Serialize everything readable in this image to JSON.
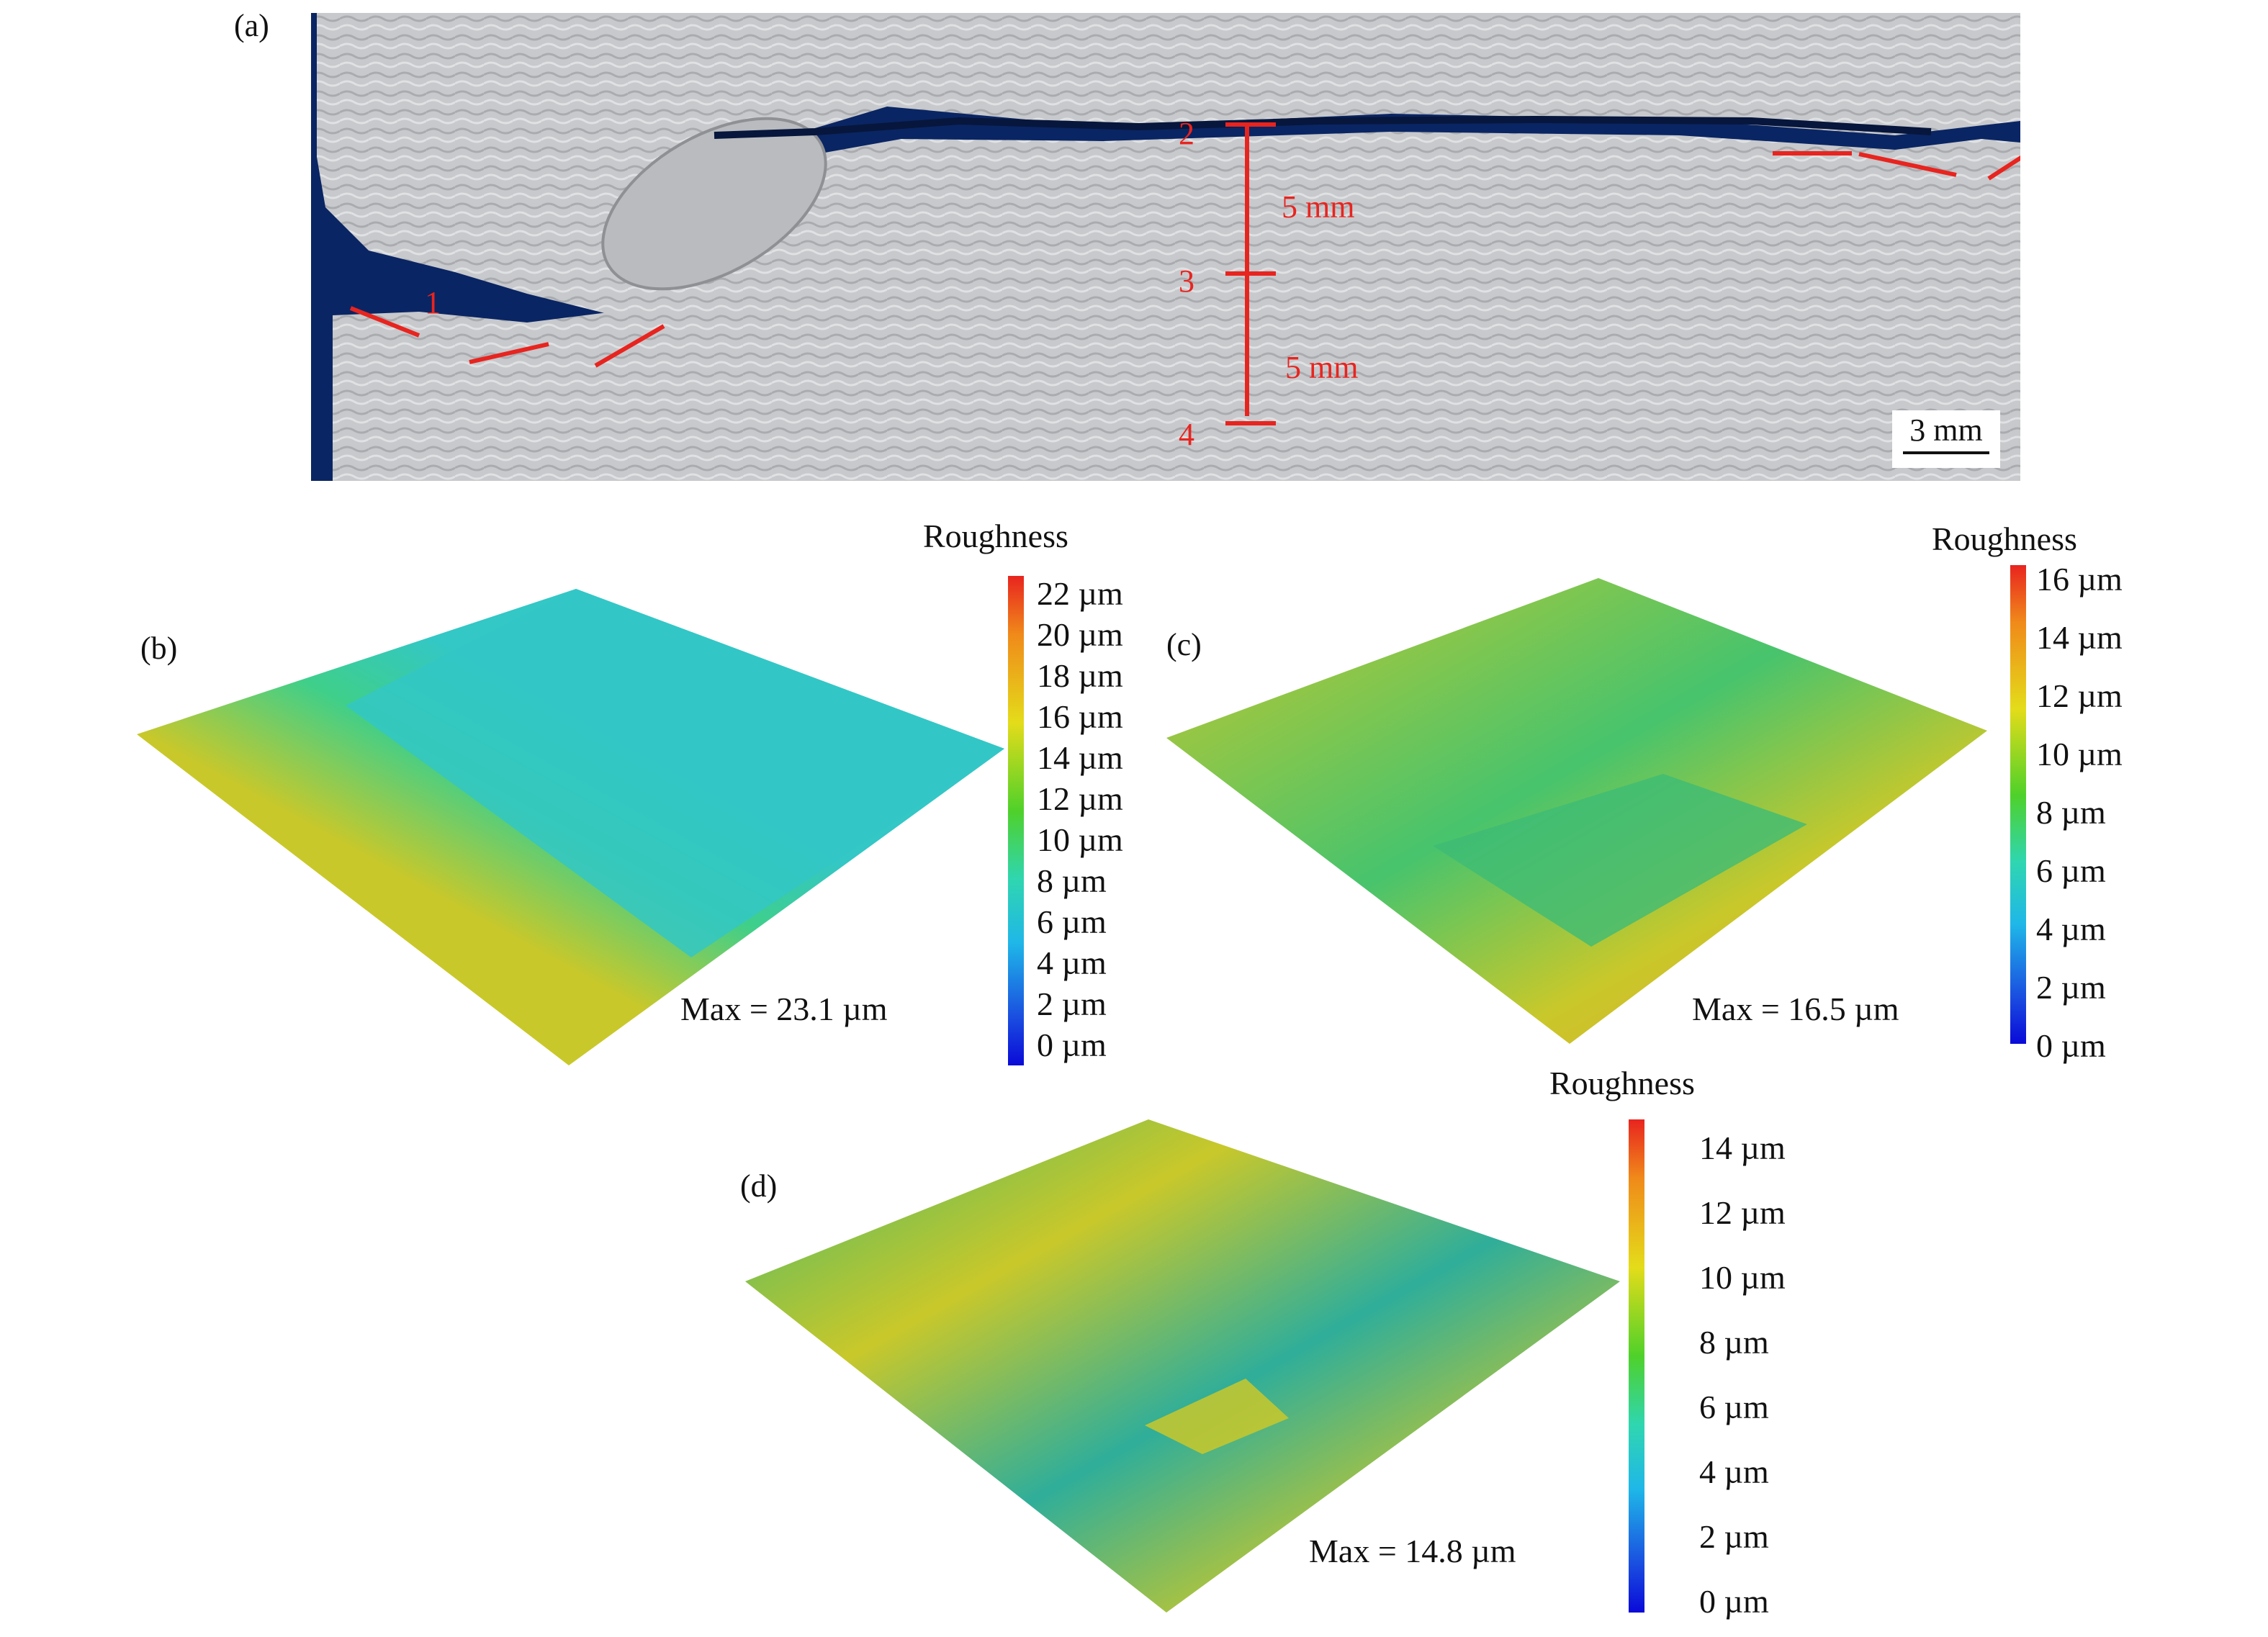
{
  "panel_a": {
    "label": "(a)",
    "markers": [
      "1",
      "2",
      "3",
      "4"
    ],
    "dims": [
      "5 mm",
      "5 mm"
    ],
    "scalebar": "3 mm",
    "colors": {
      "background": "#0a2563",
      "sample": "#c9cbce",
      "annotation": "#e8241f"
    }
  },
  "panel_b": {
    "label": "(b)",
    "colorbar_title": "Roughness",
    "ticks": [
      "22 µm",
      "20 µm",
      "18 µm",
      "16 µm",
      "14 µm",
      "12 µm",
      "10 µm",
      "8 µm",
      "6 µm",
      "4 µm",
      "2 µm",
      "0 µm"
    ],
    "max": "Max = 23.1 µm"
  },
  "panel_c": {
    "label": "(c)",
    "colorbar_title": "Roughness",
    "ticks": [
      "16 µm",
      "14 µm",
      "12 µm",
      "10 µm",
      "8 µm",
      "6 µm",
      "4 µm",
      "2 µm",
      "0 µm"
    ],
    "max": "Max = 16.5 µm"
  },
  "panel_d": {
    "label": "(d)",
    "colorbar_title": "Roughness",
    "ticks": [
      "14 µm",
      "12 µm",
      "10 µm",
      "8 µm",
      "6 µm",
      "4 µm",
      "2 µm",
      "0 µm"
    ],
    "max": "Max = 14.8 µm"
  },
  "colormap": [
    "#e8241f",
    "#f08a1a",
    "#e4dc1a",
    "#4fd12a",
    "#2fd6b0",
    "#1fb7e8",
    "#1a4fe0",
    "#0a0ad8"
  ]
}
